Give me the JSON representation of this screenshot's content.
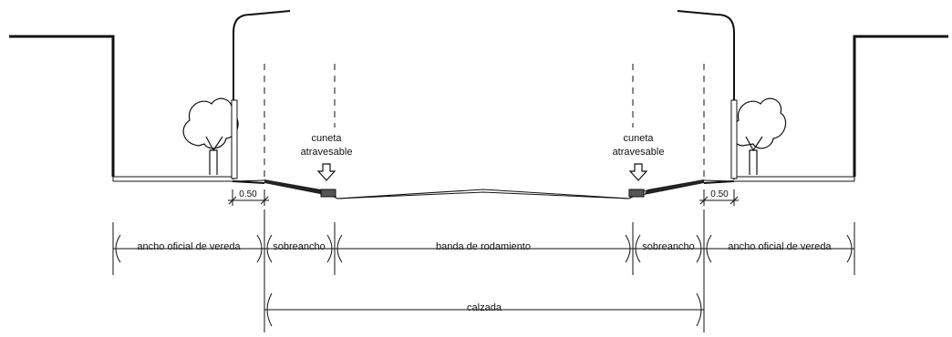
{
  "labels": {
    "cuneta_left_line1": "cuneta",
    "cuneta_left_line2": "atravesable",
    "cuneta_right_line1": "cuneta",
    "cuneta_right_line2": "atravesable",
    "offset_left": "0.50",
    "offset_right": "0.50",
    "dim_vereda_left": "ancho oficial de vereda",
    "dim_sobreancho_left": "sobreancho",
    "dim_banda": "banda de rodamiento",
    "dim_sobreancho_right": "sobreancho",
    "dim_vereda_right": "ancho oficial de vereda",
    "dim_calzada": "calzada"
  },
  "colors": {
    "line": "#111111",
    "curb_fill": "#222222"
  },
  "icons": [
    "tree-icon",
    "street-lamp-icon",
    "down-arrow-icon"
  ]
}
